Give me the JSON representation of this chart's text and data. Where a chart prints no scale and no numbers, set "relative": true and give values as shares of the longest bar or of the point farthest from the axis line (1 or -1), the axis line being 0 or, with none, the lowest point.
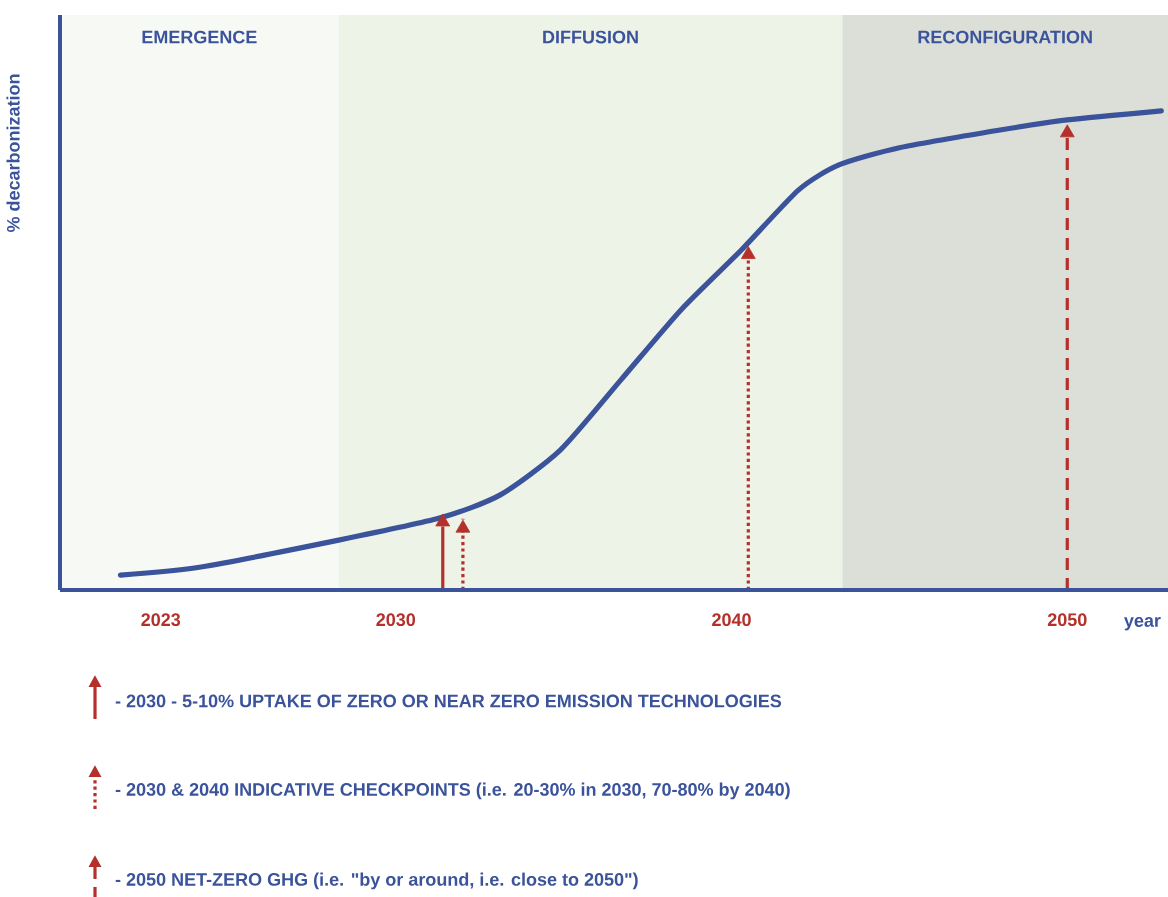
{
  "chart_data": {
    "type": "line",
    "relative": true,
    "xlabel": "year",
    "ylabel": "% decarbonization",
    "x": [
      2021.8,
      2024.2,
      2028.3,
      2031.3,
      2033.1,
      2034.9,
      2036.7,
      2038.5,
      2040.3,
      2042,
      2043.2,
      2045,
      2048,
      2050,
      2052.8
    ],
    "series": [
      {
        "color": "#3a539b",
        "values": [
          0.031,
          0.048,
          0.104,
          0.15,
          0.198,
          0.292,
          0.438,
          0.585,
          0.71,
          0.835,
          0.887,
          0.923,
          0.96,
          0.981,
          1.0
        ]
      },
      {
        "type": "scatter",
        "marker": "triangle",
        "color": "#b5302a",
        "x": [
          2031.4,
          2032,
          2040.5,
          2050
        ],
        "values": [
          0.142,
          0.129,
          0.7,
          0.954
        ]
      }
    ],
    "xlim": [
      2020,
      2053
    ],
    "xticks": [
      2023,
      2030,
      2040,
      2050
    ],
    "bands": [
      {
        "axis": "x",
        "from": 2020,
        "to": 2028.3,
        "label": "EMERGENCE",
        "color": "#f7f9f4"
      },
      {
        "axis": "x",
        "from": 2028.3,
        "to": 2043.3,
        "label": "DIFFUSION",
        "color": "#eef3e8"
      },
      {
        "axis": "x",
        "from": 2043.3,
        "to": 2053,
        "label": "RECONFIGURATION",
        "color": "#dcdfd8"
      }
    ],
    "ref_lines": [
      {
        "axis": "x",
        "value": 2031.4,
        "color": "#b5302a",
        "line_style": "solid"
      },
      {
        "axis": "x",
        "value": 2032,
        "color": "#b5302a",
        "line_style": "dotted"
      },
      {
        "axis": "x",
        "value": 2040.5,
        "color": "#b5302a",
        "line_style": "dotted"
      },
      {
        "axis": "x",
        "value": 2050,
        "color": "#b5302a",
        "line_style": "dashed"
      }
    ],
    "annotations": [
      "- 2030 - 5-10% UPTAKE OF ZERO OR NEAR ZERO EMISSION TECHNOLOGIES",
      "- 2030 & 2040 INDICATIVE CHECKPOINTS (i.e. 20-30% in 2030, 70-80% by 2040)",
      "- 2050 NET-ZERO GHG (i.e. \"by or around, i.e. close to 2050\")"
    ]
  }
}
